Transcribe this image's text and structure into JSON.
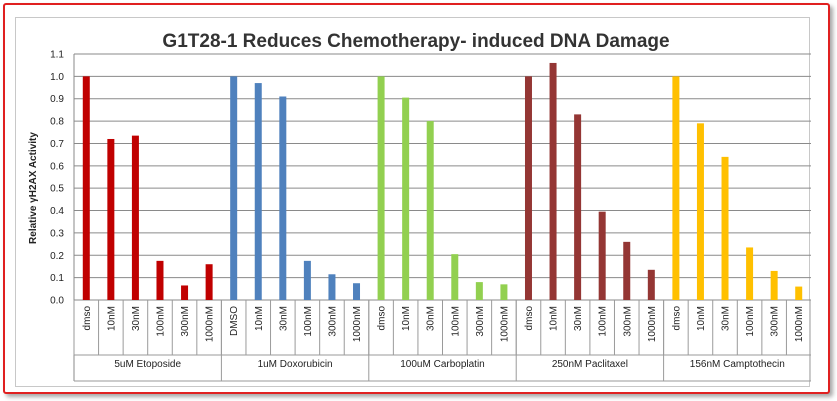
{
  "chart_data": {
    "type": "bar",
    "title": "G1T28-1 Reduces Chemotherapy- induced DNA Damage",
    "ylabel": "Relative γH2AX Activity",
    "xlabel": "",
    "ylim": [
      0,
      1.1
    ],
    "yticks": [
      "0.0",
      "0.1",
      "0.2",
      "0.3",
      "0.4",
      "0.5",
      "0.6",
      "0.7",
      "0.8",
      "0.9",
      "1.0",
      "1.1"
    ],
    "grid": true,
    "groups": [
      {
        "name": "5uM Etoposide",
        "color": "#c00000",
        "categories": [
          "dmso",
          "10nM",
          "30nM",
          "100nM",
          "300nM",
          "1000nM"
        ],
        "values": [
          1.0,
          0.72,
          0.735,
          0.175,
          0.065,
          0.16
        ]
      },
      {
        "name": "1uM Doxorubicin",
        "color": "#4f81bd",
        "categories": [
          "DMSO",
          "10nM",
          "30nM",
          "100nM",
          "300nM",
          "1000nM"
        ],
        "values": [
          1.0,
          0.97,
          0.91,
          0.175,
          0.115,
          0.075
        ]
      },
      {
        "name": "100uM Carboplatin",
        "color": "#92d050",
        "categories": [
          "dmso",
          "10nM",
          "30nM",
          "100nM",
          "300nM",
          "1000nM"
        ],
        "values": [
          1.0,
          0.905,
          0.8,
          0.205,
          0.08,
          0.07
        ]
      },
      {
        "name": "250nM Paclitaxel",
        "color": "#943634",
        "categories": [
          "dmso",
          "10nM",
          "30nM",
          "100nM",
          "300nM",
          "1000nM"
        ],
        "values": [
          1.0,
          1.06,
          0.83,
          0.395,
          0.26,
          0.135
        ]
      },
      {
        "name": "156nM Camptothecin",
        "color": "#ffc000",
        "categories": [
          "dmso",
          "10nM",
          "30nM",
          "100nM",
          "300nM",
          "1000nM"
        ],
        "values": [
          1.0,
          0.79,
          0.64,
          0.235,
          0.13,
          0.06
        ]
      }
    ]
  }
}
